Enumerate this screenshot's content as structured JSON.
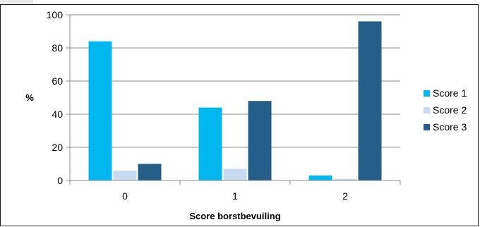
{
  "chart_data": {
    "type": "bar",
    "title": "",
    "xlabel": "Score borstbevuiling",
    "ylabel": "%",
    "categories": [
      "0",
      "1",
      "2"
    ],
    "ylim": [
      0,
      100
    ],
    "yticks": [
      0,
      20,
      40,
      60,
      80,
      100
    ],
    "grid": true,
    "legend": "right",
    "series": [
      {
        "name": "Score 1",
        "color": "#00b8ef",
        "values": [
          84,
          44,
          3
        ]
      },
      {
        "name": "Score 2",
        "color": "#c6dbf0",
        "values": [
          6,
          7,
          1
        ]
      },
      {
        "name": "Score 3",
        "color": "#265e8a",
        "values": [
          10,
          48,
          96
        ]
      }
    ]
  }
}
